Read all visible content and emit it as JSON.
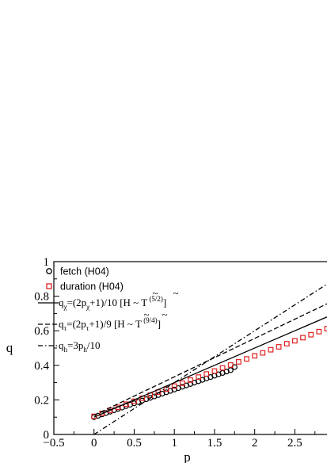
{
  "chart_data": {
    "type": "scatter",
    "xlabel": "p",
    "ylabel": "q",
    "xlim": [
      -0.5,
      2.9
    ],
    "ylim": [
      0,
      1
    ],
    "xticks": [
      "-0.5",
      "0",
      "0.5",
      "1",
      "1.5",
      "2",
      "2.5"
    ],
    "yticks": [
      "0",
      "0.2",
      "0.4",
      "0.6",
      "0.8",
      "1"
    ],
    "legend_placement": "top-left",
    "grid": false,
    "series": [
      {
        "name": "fetch (H04)",
        "kind": "markers",
        "marker": "circle",
        "color": "#000000",
        "x": [
          0.0,
          0.05,
          0.1,
          0.15,
          0.2,
          0.25,
          0.3,
          0.35,
          0.4,
          0.45,
          0.5,
          0.55,
          0.6,
          0.65,
          0.7,
          0.75,
          0.8,
          0.85,
          0.9,
          0.95,
          1.0,
          1.05,
          1.1,
          1.15,
          1.2,
          1.25,
          1.3,
          1.35,
          1.4,
          1.45,
          1.5,
          1.55,
          1.6,
          1.65,
          1.7,
          1.75
        ],
        "y": [
          0.1,
          0.108,
          0.116,
          0.124,
          0.132,
          0.14,
          0.148,
          0.156,
          0.164,
          0.172,
          0.18,
          0.188,
          0.196,
          0.204,
          0.212,
          0.22,
          0.228,
          0.236,
          0.244,
          0.252,
          0.26,
          0.268,
          0.276,
          0.284,
          0.292,
          0.3,
          0.308,
          0.316,
          0.324,
          0.332,
          0.34,
          0.348,
          0.356,
          0.364,
          0.372,
          0.39
        ]
      },
      {
        "name": "duration (H04)",
        "kind": "markers",
        "marker": "square",
        "color": "#e02020",
        "x": [
          0.0,
          0.1,
          0.2,
          0.3,
          0.4,
          0.5,
          0.6,
          0.7,
          0.8,
          0.9,
          1.0,
          1.1,
          1.2,
          1.3,
          1.4,
          1.5,
          1.6,
          1.7,
          1.8,
          1.9,
          2.0,
          2.1,
          2.2,
          2.3,
          2.4,
          2.5,
          2.6,
          2.7,
          2.8,
          2.9
        ],
        "y": [
          0.105,
          0.122,
          0.14,
          0.157,
          0.175,
          0.192,
          0.21,
          0.227,
          0.245,
          0.262,
          0.28,
          0.297,
          0.315,
          0.332,
          0.35,
          0.367,
          0.385,
          0.402,
          0.42,
          0.437,
          0.455,
          0.472,
          0.49,
          0.507,
          0.525,
          0.542,
          0.56,
          0.577,
          0.595,
          0.612
        ]
      },
      {
        "name_parts": [
          "q",
          "χ",
          "=(2p",
          "χ",
          "+1)/10 [",
          "H",
          " ~ ",
          "T",
          " (5/2)",
          "]"
        ],
        "kind": "line",
        "dash": "solid",
        "color": "#000000",
        "x": [
          0.0,
          2.9
        ],
        "y": [
          0.1,
          0.68
        ]
      },
      {
        "name_parts": [
          "q",
          "τ",
          "=(2p",
          "τ",
          "+1)/9  [",
          "H",
          " ~ ",
          "T",
          " (9/4)",
          "]"
        ],
        "kind": "line",
        "dash": "dashed",
        "color": "#000000",
        "x": [
          0.0,
          2.9
        ],
        "y": [
          0.111,
          0.756
        ]
      },
      {
        "name_parts": [
          "q",
          "h",
          "=3p",
          "h",
          "/10"
        ],
        "kind": "line",
        "dash": "dashdot",
        "color": "#000000",
        "x": [
          0.0,
          2.9
        ],
        "y": [
          0.0,
          0.87
        ]
      }
    ]
  }
}
